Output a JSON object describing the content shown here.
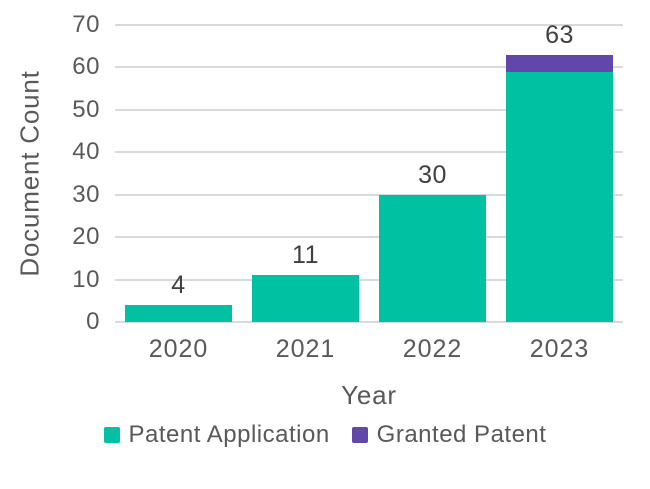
{
  "chart_data": {
    "type": "bar",
    "stacked": true,
    "categories": [
      "2020",
      "2021",
      "2022",
      "2023"
    ],
    "series": [
      {
        "name": "Patent Application",
        "color": "#00C1A2",
        "values": [
          4,
          11,
          30,
          59
        ]
      },
      {
        "name": "Granted Patent",
        "color": "#6247AB",
        "values": [
          0,
          0,
          0,
          4
        ]
      }
    ],
    "totals": [
      4,
      11,
      30,
      63
    ],
    "total_labels": [
      "4",
      "11",
      "30",
      "63"
    ],
    "xlabel": "Year",
    "ylabel": "Document Count",
    "ylim": [
      0,
      70
    ],
    "ytick_step": 10,
    "ytick_labels": [
      "0",
      "10",
      "20",
      "30",
      "40",
      "50",
      "60",
      "70"
    ],
    "grid": true,
    "legend_position": "bottom",
    "colors": {
      "grid": "#D9D9D9",
      "tick_text": "#595959",
      "axis_title_text": "#595959",
      "data_label_text": "#404040",
      "background": "#FFFFFF"
    }
  }
}
